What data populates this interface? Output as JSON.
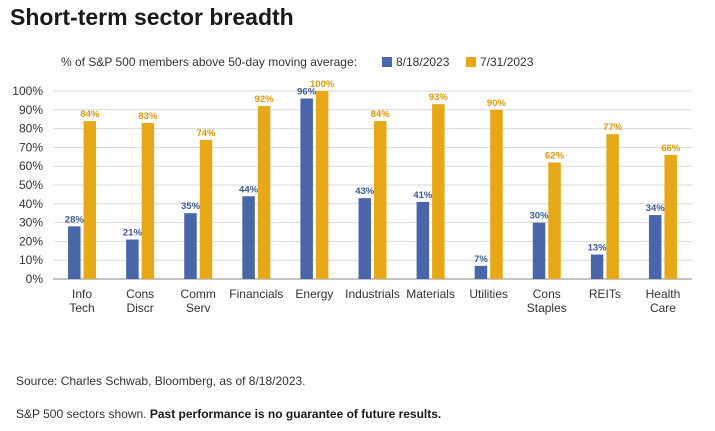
{
  "title": "Short-term sector breadth",
  "chart_data": {
    "type": "bar",
    "legend_prefix": "% of S&P 500 members above 50-day moving average:",
    "legend_position": "top",
    "categories": [
      [
        "Info",
        "Tech"
      ],
      [
        "Cons",
        "Discr"
      ],
      [
        "Comm",
        "Serv"
      ],
      [
        "Financials"
      ],
      [
        "Energy"
      ],
      [
        "Industrials"
      ],
      [
        "Materials"
      ],
      [
        "Utilities"
      ],
      [
        "Cons",
        "Staples"
      ],
      [
        "REITs"
      ],
      [
        "Health",
        "Care"
      ]
    ],
    "series": [
      {
        "name": "8/18/2023",
        "color": "#4866a8",
        "values": [
          28,
          21,
          35,
          44,
          96,
          43,
          41,
          7,
          30,
          13,
          34
        ]
      },
      {
        "name": "7/31/2023",
        "color": "#e6a817",
        "values": [
          84,
          83,
          74,
          92,
          100,
          84,
          93,
          90,
          62,
          77,
          66
        ]
      }
    ],
    "y_ticks": [
      "0%",
      "10%",
      "20%",
      "30%",
      "40%",
      "50%",
      "60%",
      "70%",
      "80%",
      "90%",
      "100%"
    ],
    "ylim": [
      0,
      100
    ],
    "value_suffix": "%",
    "grid": true
  },
  "footer": {
    "source": "Source: Charles Schwab, Bloomberg, as of 8/18/2023.",
    "note_plain": "S&P 500 sectors shown. ",
    "note_bold": "Past performance is no guarantee of future results."
  }
}
